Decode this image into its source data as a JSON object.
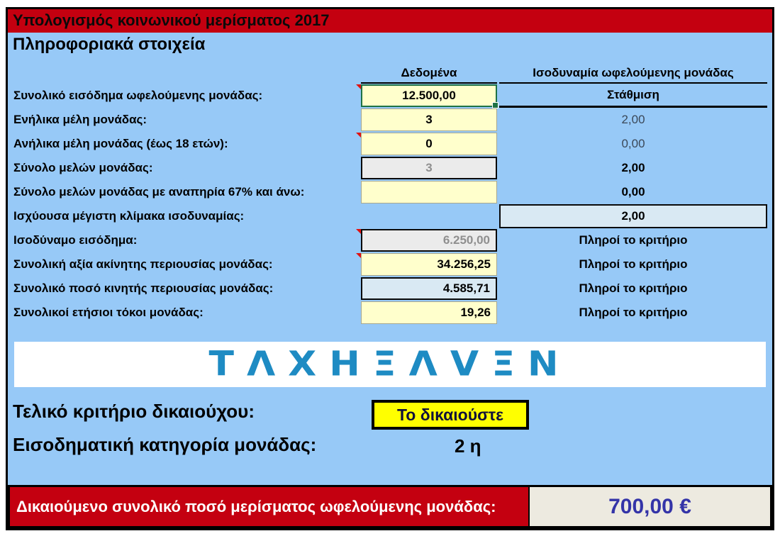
{
  "header": {
    "title": "Υπολογισμός κοινωνικού μερίσματος 2017"
  },
  "section_title": "Πληροφοριακά στοιχεία",
  "columns": {
    "data": "Δεδομένα",
    "equivalence": "Ισοδυναμία ωφελούμενης μονάδας"
  },
  "rows": [
    {
      "label": "Συνολικό εισόδημα ωφελούμενης μονάδας:",
      "value": "12.500,00",
      "result": "Στάθμιση",
      "has_comment": true
    },
    {
      "label": "Ενήλικα μέλη μονάδας:",
      "value": "3",
      "result": "2,00"
    },
    {
      "label": "Ανήλικα μέλη μονάδας (έως 18 ετών):",
      "value": "0",
      "result": "0,00",
      "has_comment": true
    },
    {
      "label": "Σύνολο μελών μονάδας:",
      "value": "3",
      "result": "2,00"
    },
    {
      "label": "Σύνολο μελών μονάδας με αναπηρία 67% και άνω:",
      "value": "",
      "result": "0,00"
    },
    {
      "label": "Ισχύουσα μέγιστη κλίμακα ισοδυναμίας:",
      "result": "2,00"
    },
    {
      "label": "Ισοδύναμο εισόδημα:",
      "value": "6.250,00",
      "result": "Πληροί το κριτήριο",
      "has_comment": true
    },
    {
      "label": "Συνολική αξία ακίνητης περιουσίας μονάδας:",
      "value": "34.256,25",
      "result": "Πληροί το κριτήριο",
      "has_comment": true
    },
    {
      "label": "Συνολικό ποσό κινητής περιουσίας μονάδας:",
      "value": "4.585,71",
      "result": "Πληροί το κριτήριο"
    },
    {
      "label": "Συνολικοί ετήσιοι τόκοι μονάδας:",
      "value": "19,26",
      "result": "Πληροί το κριτήριο"
    }
  ],
  "logo": {
    "brand": "TAXHEAVEN",
    "display": "ΤΛΧΗΞΛVΞΝ"
  },
  "summary": {
    "final_criterion_label": "Τελικό κριτήριο δικαιούχου:",
    "final_criterion_value": "Το δικαιούστε",
    "income_category_label": "Εισοδηματική κατηγορία μονάδας:",
    "income_category_value": "2 η"
  },
  "footer": {
    "label": "Δικαιούμενο συνολικό ποσό μερίσματος ωφελούμενης μονάδας:",
    "amount": "700,00 €"
  },
  "colors": {
    "background_blue": "#97C9F7",
    "header_red": "#C40010",
    "input_yellow": "#FFFFCC",
    "computed_grey": "#EBEBEB",
    "highlight_blue": "#D9E9F3",
    "verdict_yellow": "#FFFF00",
    "selection_green": "#1E7245",
    "amount_blue": "#3434A8",
    "logo_blue": "#1E8BC3"
  }
}
